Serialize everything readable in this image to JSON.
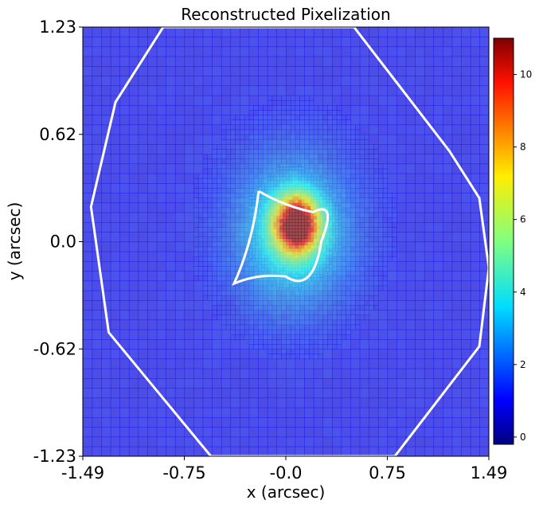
{
  "chart_data": {
    "type": "heatmap",
    "title": "Reconstructed Pixelization",
    "xlabel": "x (arcsec)",
    "ylabel": "y (arcsec)",
    "xlim": [
      -1.49,
      1.49
    ],
    "ylim": [
      -1.23,
      1.23
    ],
    "x_ticks": [
      "-1.49",
      "-0.75",
      "-0.0",
      "0.75",
      "1.49"
    ],
    "x_tick_values": [
      -1.49,
      -0.745,
      0.0,
      0.745,
      1.49
    ],
    "y_ticks": [
      "-1.23",
      "-0.62",
      "0.0",
      "0.62",
      "1.23"
    ],
    "y_tick_values": [
      -1.23,
      -0.615,
      0.0,
      0.615,
      1.23
    ],
    "colormap": "jet",
    "colorbar": {
      "range": [
        -0.2,
        11
      ],
      "ticks": [
        "0",
        "2",
        "4",
        "6",
        "8",
        "10"
      ],
      "tick_values": [
        0,
        2,
        4,
        6,
        8,
        10
      ]
    },
    "peak": {
      "x": 0.08,
      "y": 0.1,
      "value": 10.5
    },
    "background_value": 1.2,
    "sources": [
      {
        "x": 0.08,
        "y": 0.1,
        "amp": 9.3,
        "sigma": 0.11
      },
      {
        "x": 0.05,
        "y": 0.05,
        "amp": 3.0,
        "sigma": 0.3
      }
    ],
    "caustic_curve": [
      [
        -0.2,
        0.29
      ],
      [
        0.0,
        0.2
      ],
      [
        0.2,
        0.17
      ],
      [
        0.38,
        0.24
      ],
      [
        0.26,
        0.0
      ],
      [
        0.2,
        -0.3
      ],
      [
        0.0,
        -0.2
      ],
      [
        -0.2,
        -0.18
      ],
      [
        -0.38,
        -0.24
      ],
      [
        -0.24,
        0.0
      ],
      [
        -0.2,
        0.29
      ]
    ],
    "critical_curve": [
      [
        -0.9,
        1.23
      ],
      [
        -1.25,
        0.8
      ],
      [
        -1.43,
        0.2
      ],
      [
        -1.3,
        -0.52
      ],
      [
        -0.55,
        -1.23
      ],
      [
        0.8,
        -1.23
      ],
      [
        1.42,
        -0.6
      ],
      [
        1.49,
        -0.15
      ],
      [
        1.42,
        0.25
      ],
      [
        1.2,
        0.52
      ],
      [
        0.5,
        1.23
      ],
      [
        -0.9,
        1.23
      ]
    ],
    "grid": false
  },
  "colors": {
    "curve": "#ffffff",
    "axes": "#000000"
  }
}
